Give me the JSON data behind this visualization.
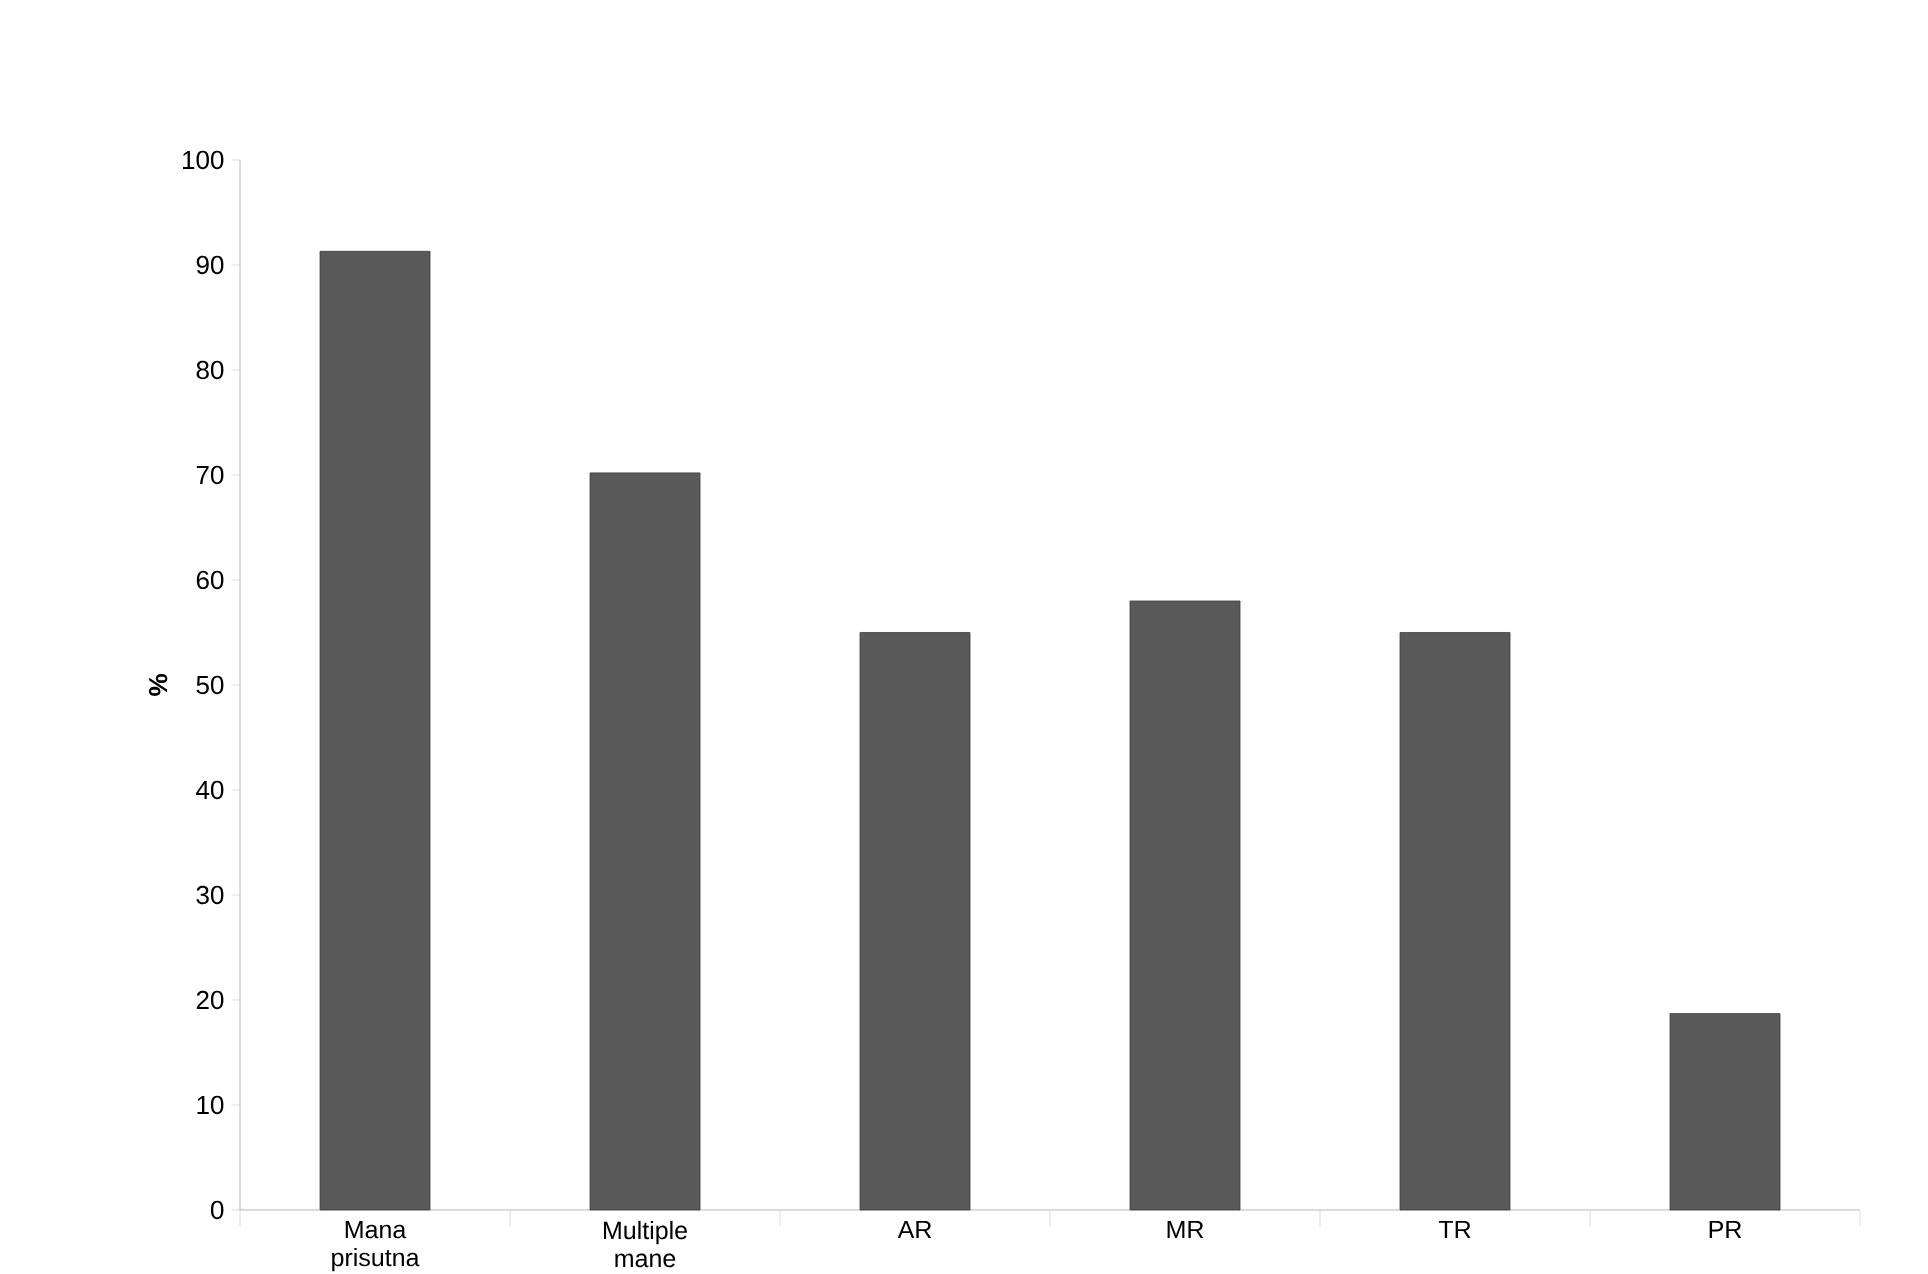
{
  "chart_data": {
    "type": "bar",
    "ylabel": "%",
    "categories": [
      "Mana prisutna",
      "Multiple mane",
      "AR",
      "MR",
      "TR",
      "PR"
    ],
    "values": [
      91.3,
      70.2,
      55,
      58,
      55,
      18.7
    ],
    "color": "#595959",
    "ylim": [
      0,
      100
    ],
    "yticks": [
      0,
      10,
      20,
      30,
      40,
      50,
      60,
      70,
      80,
      90,
      100
    ],
    "grid": false
  }
}
